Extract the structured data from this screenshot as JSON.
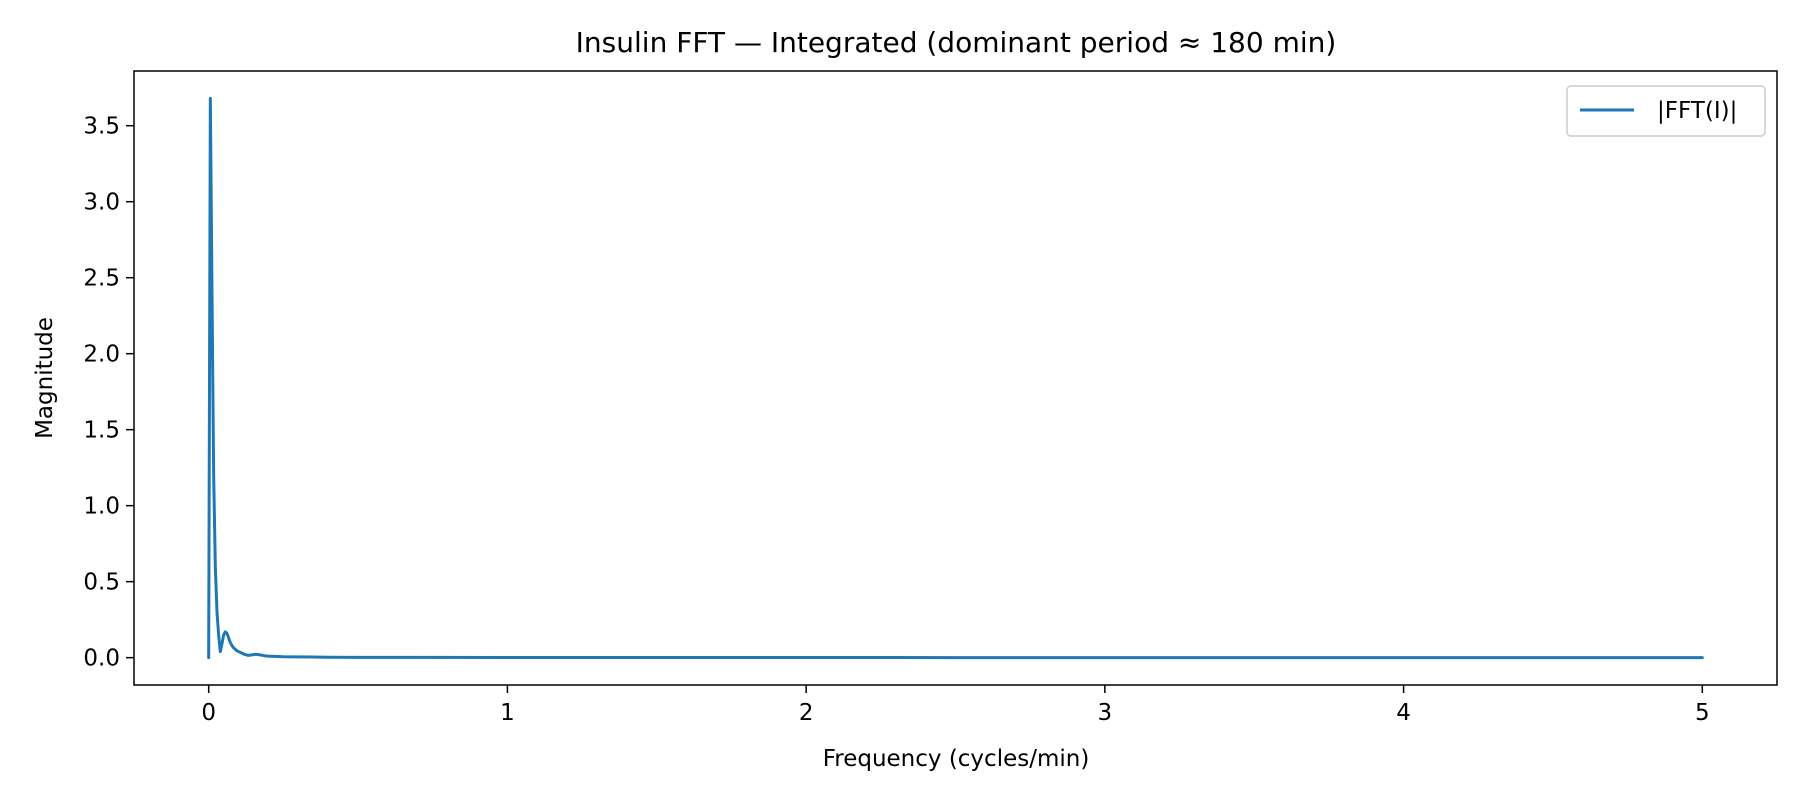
{
  "chart_data": {
    "type": "line",
    "title": "Insulin FFT — Integrated (dominant period ≈ 180 min)",
    "xlabel": "Frequency (cycles/min)",
    "ylabel": "Magnitude",
    "xlim": [
      -0.25,
      5.25
    ],
    "ylim": [
      -0.18,
      3.86
    ],
    "xticks": [
      0,
      1,
      2,
      3,
      4,
      5
    ],
    "xtick_labels": [
      "0",
      "1",
      "2",
      "3",
      "4",
      "5"
    ],
    "yticks": [
      0.0,
      0.5,
      1.0,
      1.5,
      2.0,
      2.5,
      3.0,
      3.5
    ],
    "ytick_labels": [
      "0.0",
      "0.5",
      "1.0",
      "1.5",
      "2.0",
      "2.5",
      "3.0",
      "3.5"
    ],
    "grid": false,
    "legend": "top-right",
    "series": [
      {
        "name": "|FFT(I)|",
        "color": "#1f77b4",
        "x": [
          0.0,
          0.00556,
          0.0111,
          0.0167,
          0.0222,
          0.0278,
          0.0333,
          0.0389,
          0.0444,
          0.05,
          0.0556,
          0.0611,
          0.0667,
          0.0722,
          0.0778,
          0.0833,
          0.0889,
          0.0944,
          0.1,
          0.111,
          0.122,
          0.133,
          0.144,
          0.156,
          0.167,
          0.178,
          0.189,
          0.2,
          0.22,
          0.25,
          0.3,
          0.35,
          0.4,
          0.5,
          0.7,
          1.0,
          1.5,
          2.0,
          2.5,
          3.0,
          3.5,
          4.0,
          4.5,
          5.0
        ],
        "y": [
          0.0,
          3.68,
          2.4,
          1.2,
          0.6,
          0.3,
          0.15,
          0.04,
          0.09,
          0.15,
          0.17,
          0.16,
          0.13,
          0.1,
          0.08,
          0.065,
          0.055,
          0.045,
          0.04,
          0.03,
          0.02,
          0.015,
          0.018,
          0.022,
          0.02,
          0.016,
          0.012,
          0.01,
          0.008,
          0.006,
          0.005,
          0.004,
          0.003,
          0.002,
          0.0015,
          0.001,
          0.0008,
          0.0006,
          0.0005,
          0.0004,
          0.0004,
          0.0003,
          0.0003,
          0.0002
        ]
      }
    ]
  }
}
